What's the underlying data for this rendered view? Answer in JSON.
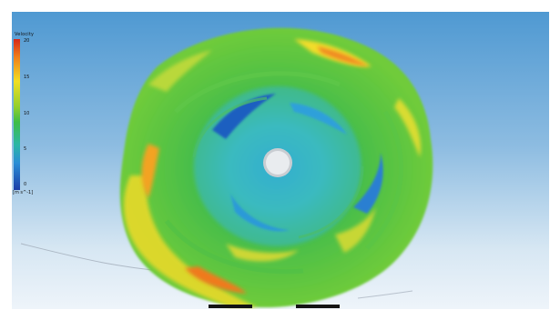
{
  "legend": {
    "title": "Velocity",
    "ticks": [
      "20",
      "15",
      "10",
      "5",
      "0"
    ],
    "units": "[m s^-1]",
    "colors": [
      "#d62718",
      "#f07f1b",
      "#f1df22",
      "#3dbd47",
      "#2bb6a6",
      "#2a8ed6",
      "#1b3ea8"
    ]
  },
  "scene": {
    "description_free": "",
    "swirl_colors": {
      "outer": "#3fb94a",
      "highlight": "#f2dd2a",
      "hot": "#f08a22",
      "core": "#32b2d6",
      "deep": "#1f5fc0"
    }
  }
}
